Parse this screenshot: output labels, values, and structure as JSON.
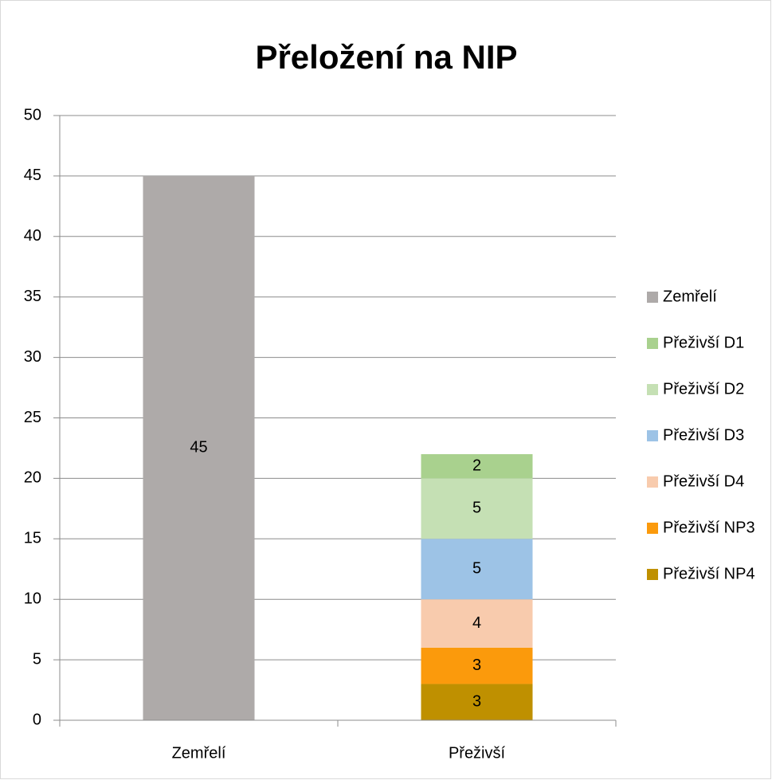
{
  "chart_data": {
    "type": "stacked_bar",
    "title": "Přeložení na NIP",
    "categories": [
      "Zemřelí",
      "Přeživší"
    ],
    "series": [
      {
        "name": "Zemřelí",
        "color": "#aeaaa9",
        "values": [
          45,
          null
        ]
      },
      {
        "name": "Přeživší D1",
        "color": "#a9d18e",
        "values": [
          null,
          2
        ]
      },
      {
        "name": "Přeživší D2",
        "color": "#c5e0b4",
        "values": [
          null,
          5
        ]
      },
      {
        "name": "Přeživší D3",
        "color": "#9dc3e6",
        "values": [
          null,
          5
        ]
      },
      {
        "name": "Přeživší D4",
        "color": "#f8cbad",
        "values": [
          null,
          4
        ]
      },
      {
        "name": "Přeživší NP3",
        "color": "#fb9a0c",
        "values": [
          null,
          3
        ]
      },
      {
        "name": "Přeživší NP4",
        "color": "#bf9000",
        "values": [
          null,
          3
        ]
      }
    ],
    "ylim": [
      0,
      50
    ],
    "yticks": [
      0,
      5,
      10,
      15,
      20,
      25,
      30,
      35,
      40,
      45,
      50
    ],
    "grid": true,
    "legend": "right"
  }
}
